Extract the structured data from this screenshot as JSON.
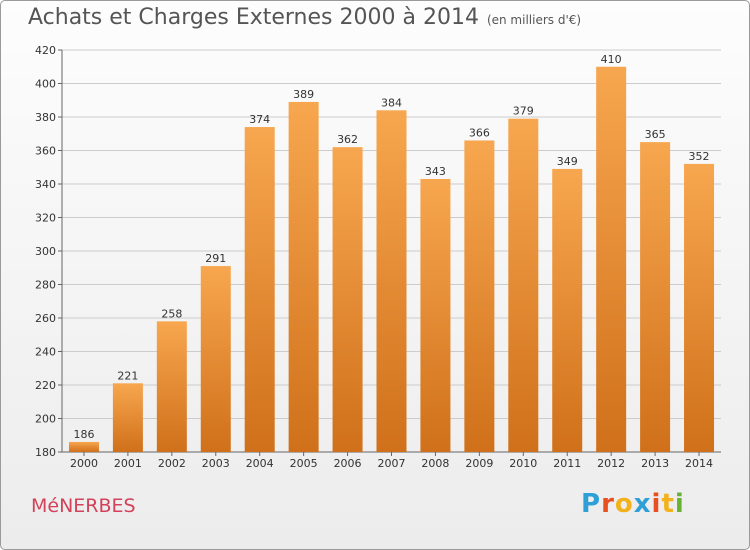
{
  "header": {
    "title": "Achats et Charges Externes 2000 à 2014",
    "unit": "(en milliers d'€)"
  },
  "footer": {
    "commune": "MéNERBES",
    "logo": [
      "P",
      "r",
      "o",
      "x",
      "i",
      "t",
      "i"
    ]
  },
  "colors": {
    "bar_top": "#f7a74f",
    "bar_bottom": "#d0701a",
    "grid": "#cccccc",
    "title": "#555555",
    "commune": "#d3425a",
    "logo": [
      "#2f9fd8",
      "#e8501f",
      "#f3b21b",
      "#2f9fd8",
      "#e8501f",
      "#f3b21b",
      "#6ab234"
    ]
  },
  "chart_data": {
    "type": "bar",
    "title": "Achats et Charges Externes 2000 à 2014",
    "subtitle": "(en milliers d'€)",
    "xlabel": "",
    "ylabel": "",
    "categories": [
      "2000",
      "2001",
      "2002",
      "2003",
      "2004",
      "2005",
      "2006",
      "2007",
      "2008",
      "2009",
      "2010",
      "2011",
      "2012",
      "2013",
      "2014"
    ],
    "values": [
      186,
      221,
      258,
      291,
      374,
      389,
      362,
      384,
      343,
      366,
      379,
      349,
      410,
      365,
      352
    ],
    "ylim": [
      180,
      420
    ],
    "yticks": [
      180,
      200,
      220,
      240,
      260,
      280,
      300,
      320,
      340,
      360,
      380,
      400,
      420
    ],
    "grid": true,
    "legend": "none"
  }
}
